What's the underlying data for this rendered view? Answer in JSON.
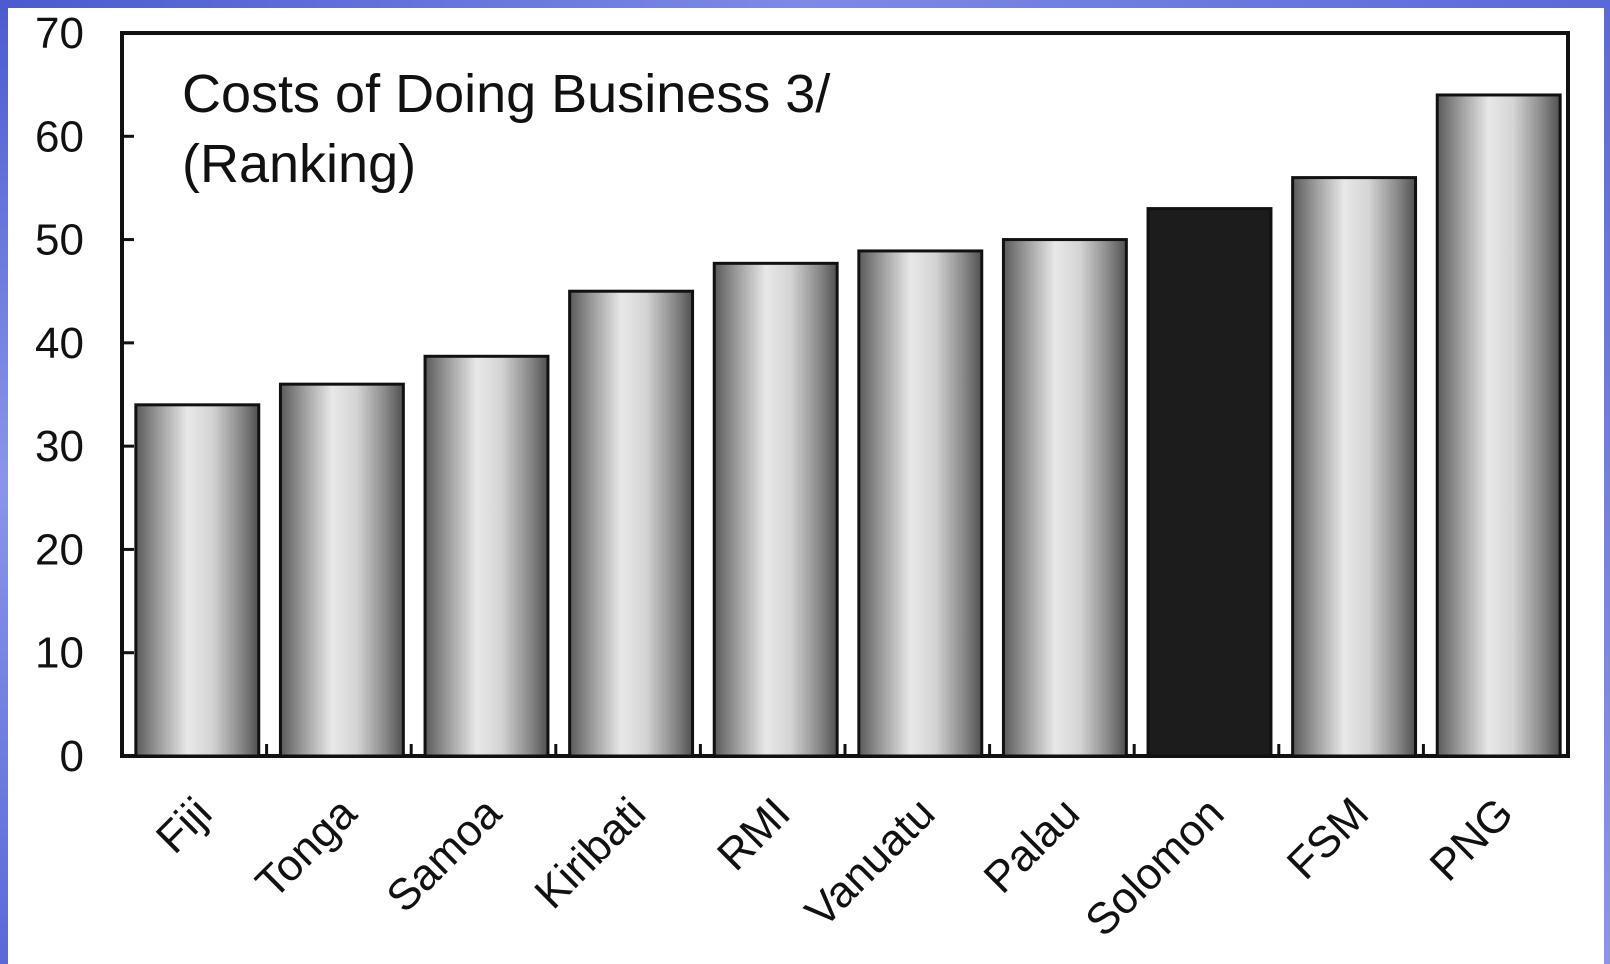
{
  "chart_data": {
    "type": "bar",
    "title": "Costs of Doing Business 3/",
    "subtitle": "(Ranking)",
    "categories": [
      "Fiji",
      "Tonga",
      "Samoa",
      "Kiribati",
      "RMI",
      "Vanuatu",
      "Palau",
      "Solomon",
      "FSM",
      "PNG"
    ],
    "values": [
      34,
      36,
      38.7,
      45,
      47.7,
      48.9,
      50,
      53,
      56,
      64
    ],
    "highlight": "Solomon",
    "ylim": [
      0,
      70
    ],
    "yticks": [
      0,
      10,
      20,
      30,
      40,
      50,
      60,
      70
    ],
    "xlabel": "",
    "ylabel": "",
    "grid": false,
    "colors": {
      "bar_edge": "#111111",
      "bar_light": "#e6e6e6",
      "bar_dark": "#555555",
      "highlight_fill": "#1c1c1c",
      "frame": "#4b5bd0"
    }
  }
}
